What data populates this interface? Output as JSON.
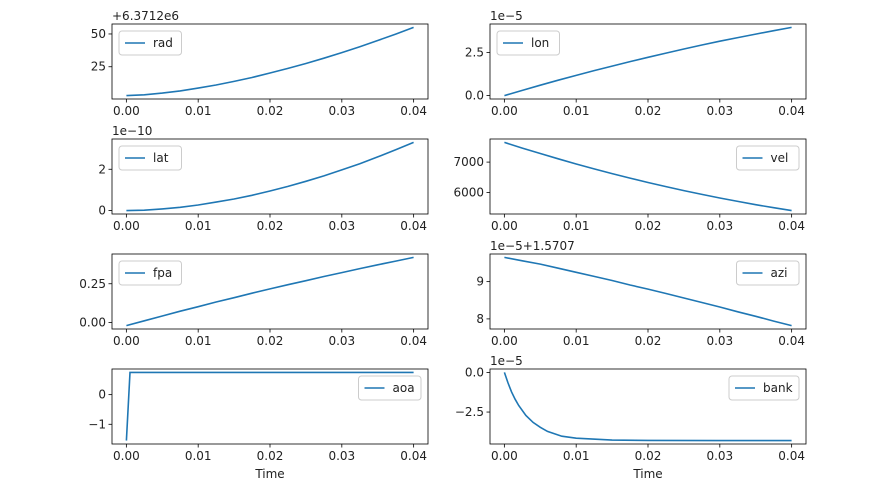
{
  "chart_data": [
    {
      "type": "line",
      "name": "rad",
      "legend": "rad",
      "legend_loc": "upper-left",
      "offset_text": "+6.3712e6",
      "xlabel": "",
      "x": [
        0,
        0.0025,
        0.005,
        0.0075,
        0.01,
        0.0125,
        0.015,
        0.0175,
        0.02,
        0.0225,
        0.025,
        0.0275,
        0.03,
        0.0325,
        0.035,
        0.0375,
        0.04
      ],
      "y": [
        3,
        3.6,
        4.9,
        6.6,
        8.7,
        11.1,
        13.8,
        16.8,
        20.2,
        23.7,
        27.5,
        31.5,
        35.8,
        40.3,
        45.0,
        49.9,
        55
      ],
      "yticks": [
        25,
        50
      ],
      "ytick_labels": [
        "25",
        "50"
      ]
    },
    {
      "type": "line",
      "name": "lon",
      "legend": "lon",
      "legend_loc": "upper-left",
      "offset_text": "1e−5",
      "xlabel": "",
      "x": [
        0,
        0.0025,
        0.005,
        0.0075,
        0.01,
        0.0125,
        0.015,
        0.0175,
        0.02,
        0.0225,
        0.025,
        0.0275,
        0.03,
        0.0325,
        0.035,
        0.0375,
        0.04
      ],
      "y": [
        0,
        0.3,
        0.6,
        0.89,
        1.17,
        1.45,
        1.71,
        1.97,
        2.22,
        2.46,
        2.7,
        2.93,
        3.15,
        3.36,
        3.56,
        3.76,
        3.95
      ],
      "yticks": [
        0,
        2.5
      ],
      "ytick_labels": [
        "0.0",
        "2.5"
      ]
    },
    {
      "type": "line",
      "name": "lat",
      "legend": "lat",
      "legend_loc": "upper-left",
      "offset_text": "1e−10",
      "xlabel": "",
      "x": [
        0,
        0.0025,
        0.005,
        0.0075,
        0.01,
        0.0125,
        0.015,
        0.0175,
        0.02,
        0.0225,
        0.025,
        0.0275,
        0.03,
        0.0325,
        0.035,
        0.0375,
        0.04
      ],
      "y": [
        0,
        0.02,
        0.08,
        0.16,
        0.27,
        0.41,
        0.56,
        0.74,
        0.95,
        1.17,
        1.42,
        1.68,
        1.97,
        2.27,
        2.6,
        2.94,
        3.3
      ],
      "yticks": [
        0,
        2
      ],
      "ytick_labels": [
        "0",
        "2"
      ]
    },
    {
      "type": "line",
      "name": "vel",
      "legend": "vel",
      "legend_loc": "upper-right",
      "offset_text": "",
      "xlabel": "",
      "x": [
        0,
        0.0025,
        0.005,
        0.0075,
        0.01,
        0.0125,
        0.015,
        0.0175,
        0.02,
        0.0225,
        0.025,
        0.0275,
        0.03,
        0.0325,
        0.035,
        0.0375,
        0.04
      ],
      "y": [
        7650,
        7463,
        7283,
        7108,
        6939,
        6777,
        6622,
        6473,
        6327,
        6192,
        6059,
        5933,
        5814,
        5702,
        5596,
        5494,
        5400
      ],
      "yticks": [
        6000,
        7000
      ],
      "ytick_labels": [
        "6000",
        "7000"
      ]
    },
    {
      "type": "line",
      "name": "fpa",
      "legend": "fpa",
      "legend_loc": "upper-left",
      "offset_text": "",
      "xlabel": "",
      "x": [
        0,
        0.0025,
        0.005,
        0.0075,
        0.01,
        0.0125,
        0.015,
        0.0175,
        0.02,
        0.0225,
        0.025,
        0.0275,
        0.03,
        0.0325,
        0.035,
        0.0375,
        0.04
      ],
      "y": [
        -0.02,
        0.011,
        0.042,
        0.073,
        0.102,
        0.132,
        0.16,
        0.189,
        0.217,
        0.244,
        0.27,
        0.297,
        0.322,
        0.348,
        0.372,
        0.396,
        0.42
      ],
      "yticks": [
        0,
        0.25
      ],
      "ytick_labels": [
        "0.00",
        "0.25"
      ]
    },
    {
      "type": "line",
      "name": "azi",
      "legend": "azi",
      "legend_loc": "upper-right",
      "offset_text": "1e−5+1.5707",
      "xlabel": "",
      "x": [
        0,
        0.0025,
        0.005,
        0.0075,
        0.01,
        0.0125,
        0.015,
        0.0175,
        0.02,
        0.0225,
        0.025,
        0.0275,
        0.03,
        0.0325,
        0.035,
        0.0375,
        0.04
      ],
      "y": [
        9.65,
        9.56,
        9.47,
        9.36,
        9.25,
        9.14,
        9.03,
        8.91,
        8.8,
        8.68,
        8.56,
        8.44,
        8.32,
        8.19,
        8.07,
        7.94,
        7.82
      ],
      "yticks": [
        8,
        9
      ],
      "ytick_labels": [
        "8",
        "9"
      ]
    },
    {
      "type": "line",
      "name": "aoa",
      "legend": "aoa",
      "legend_loc": "upper-right",
      "offset_text": "",
      "xlabel": "Time",
      "x": [
        0,
        0.0005,
        0.04
      ],
      "y": [
        -1.55,
        0.75,
        0.75
      ],
      "yticks": [
        -1,
        0
      ],
      "ytick_labels": [
        "−1",
        "0"
      ]
    },
    {
      "type": "line",
      "name": "bank",
      "legend": "bank",
      "legend_loc": "upper-right",
      "offset_text": "1e−5",
      "xlabel": "Time",
      "x": [
        0,
        0.0005,
        0.001,
        0.0015,
        0.002,
        0.003,
        0.004,
        0.005,
        0.006,
        0.008,
        0.01,
        0.015,
        0.02,
        0.03,
        0.04
      ],
      "y": [
        0,
        -0.66,
        -1.22,
        -1.69,
        -2.09,
        -2.72,
        -3.15,
        -3.46,
        -3.72,
        -4.02,
        -4.15,
        -4.27,
        -4.29,
        -4.3,
        -4.3
      ],
      "yticks": [
        -2.5,
        0
      ],
      "ytick_labels": [
        "−2.5",
        "0.0"
      ]
    }
  ],
  "shared_x": {
    "xlim": [
      -0.002,
      0.042
    ],
    "xticks": [
      0,
      0.01,
      0.02,
      0.03,
      0.04
    ],
    "xtick_labels": [
      "0.00",
      "0.01",
      "0.02",
      "0.03",
      "0.04"
    ]
  },
  "colors": {
    "line": "#1f77b4"
  }
}
